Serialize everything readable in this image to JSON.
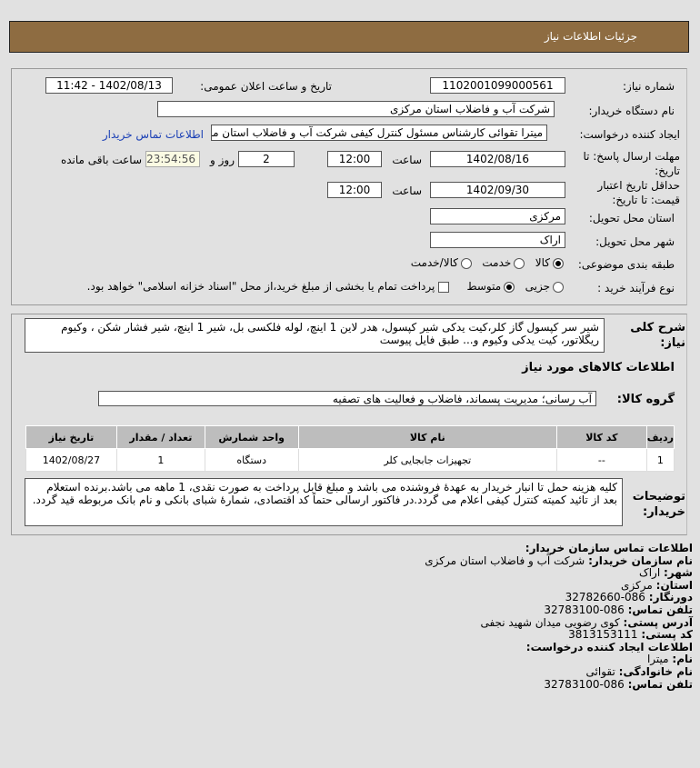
{
  "header": {
    "title": "جزئیات اطلاعات نیاز"
  },
  "form": {
    "need_number_label": "شماره نیاز:",
    "need_number": "1102001099000561",
    "announce_label": "تاریخ و ساعت اعلان عمومی:",
    "announce_value": "1402/08/13 - 11:42",
    "buyer_org_label": "نام دستگاه خریدار:",
    "buyer_org": "شرکت آب و فاضلاب استان مرکزی",
    "creator_label": "ایجاد کننده درخواست:",
    "creator": "میترا تقوائی کارشناس مسئول کنترل کیفی شرکت آب و فاضلاب استان مرکزی",
    "contact_link": "اطلاعات تماس خریدار",
    "deadline_label": "مهلت ارسال پاسخ: تا تاریخ:",
    "deadline_date": "1402/08/16",
    "time_label": "ساعت",
    "deadline_time": "12:00",
    "days": "2",
    "days_label": "روز و",
    "remaining": "23:54:56",
    "remaining_label": "ساعت باقی مانده",
    "validity_label": "حداقل تاریخ اعتبار قیمت: تا تاریخ:",
    "validity_date": "1402/09/30",
    "validity_time": "12:00",
    "province_label": "استان محل تحویل:",
    "province": "مرکزی",
    "city_label": "شهر محل تحویل:",
    "city": "اراک",
    "category_label": "طبقه بندی موضوعی:",
    "category_options": [
      "کالا",
      "خدمت",
      "کالا/خدمت"
    ],
    "category_selected": "کالا",
    "process_label": "نوع فرآیند خرید :",
    "process_options": [
      "جزیی",
      "متوسط"
    ],
    "process_selected": "متوسط",
    "treasury_text": "پرداخت تمام یا بخشی از مبلغ خرید،از محل \"اسناد خزانه اسلامی\" خواهد بود.",
    "treasury_checked": false
  },
  "details": {
    "desc_label": "شرح کلی نیاز:",
    "desc": "شیر سر کپسول گاز کلر،کیت یدکی شیر کپسول، هدر لاین 1 اینچ، لوله فلکسی بل، شیر 1 اینچ، شیر فشار شکن ، وکیوم ریگلاتور، کیت یدکی وکیوم و... طبق فایل پیوست",
    "goods_title": "اطلاعات کالاهای مورد نیاز",
    "group_label": "گروه کالا:",
    "group": "آب رسانی؛ مدیریت پسماند، فاضلاب و فعالیت های تصفیه",
    "table": {
      "headers": [
        "ردیف",
        "کد کالا",
        "نام کالا",
        "واحد شمارش",
        "تعداد / مقدار",
        "تاریخ نیاز"
      ],
      "rows": [
        [
          "1",
          "--",
          "تجهیزات جابجایی کلر",
          "دستگاه",
          "1",
          "1402/08/27"
        ]
      ]
    },
    "notes_label": "توضیحات خریدار:",
    "notes": "کلیه هزینه حمل تا انبار خریدار به عهدهٔ فروشنده می باشد و مبلغ قابل پرداخت به صورت نقدی، 1 ماهه می باشد.برنده استعلام بعد از تائید کمیته کنترل کیفی اعلام می گردد.در فاکتور ارسالی حتماً کد اقتصادی، شمارهٔ شبای بانکی و نام بانک مربوطه قید گردد."
  },
  "contact": {
    "title": "اطلاعات تماس سازمان خریدار:",
    "org_label": "نام سازمان خریدار:",
    "org": "شرکت آب و فاضلاب استان مرکزی",
    "city_label": "شهر:",
    "city": "اراک",
    "province_label": "استان:",
    "province": "مرکزی",
    "fax_label": "دورنگار:",
    "fax": "086-32782660",
    "phone_label": "تلفن تماس:",
    "phone": "086-32783100",
    "address_label": "آدرس پستی:",
    "address": "کوی رضویی میدان شهید نجفی",
    "postal_label": "کد پستی:",
    "postal": "3813153111",
    "creator_title": "اطلاعات ایجاد کننده درخواست:",
    "name_label": "نام:",
    "name": "میترا",
    "family_label": "نام خانوادگی:",
    "family": "تقوائی",
    "creator_phone_label": "تلفن تماس:",
    "creator_phone": "086-32783100"
  }
}
